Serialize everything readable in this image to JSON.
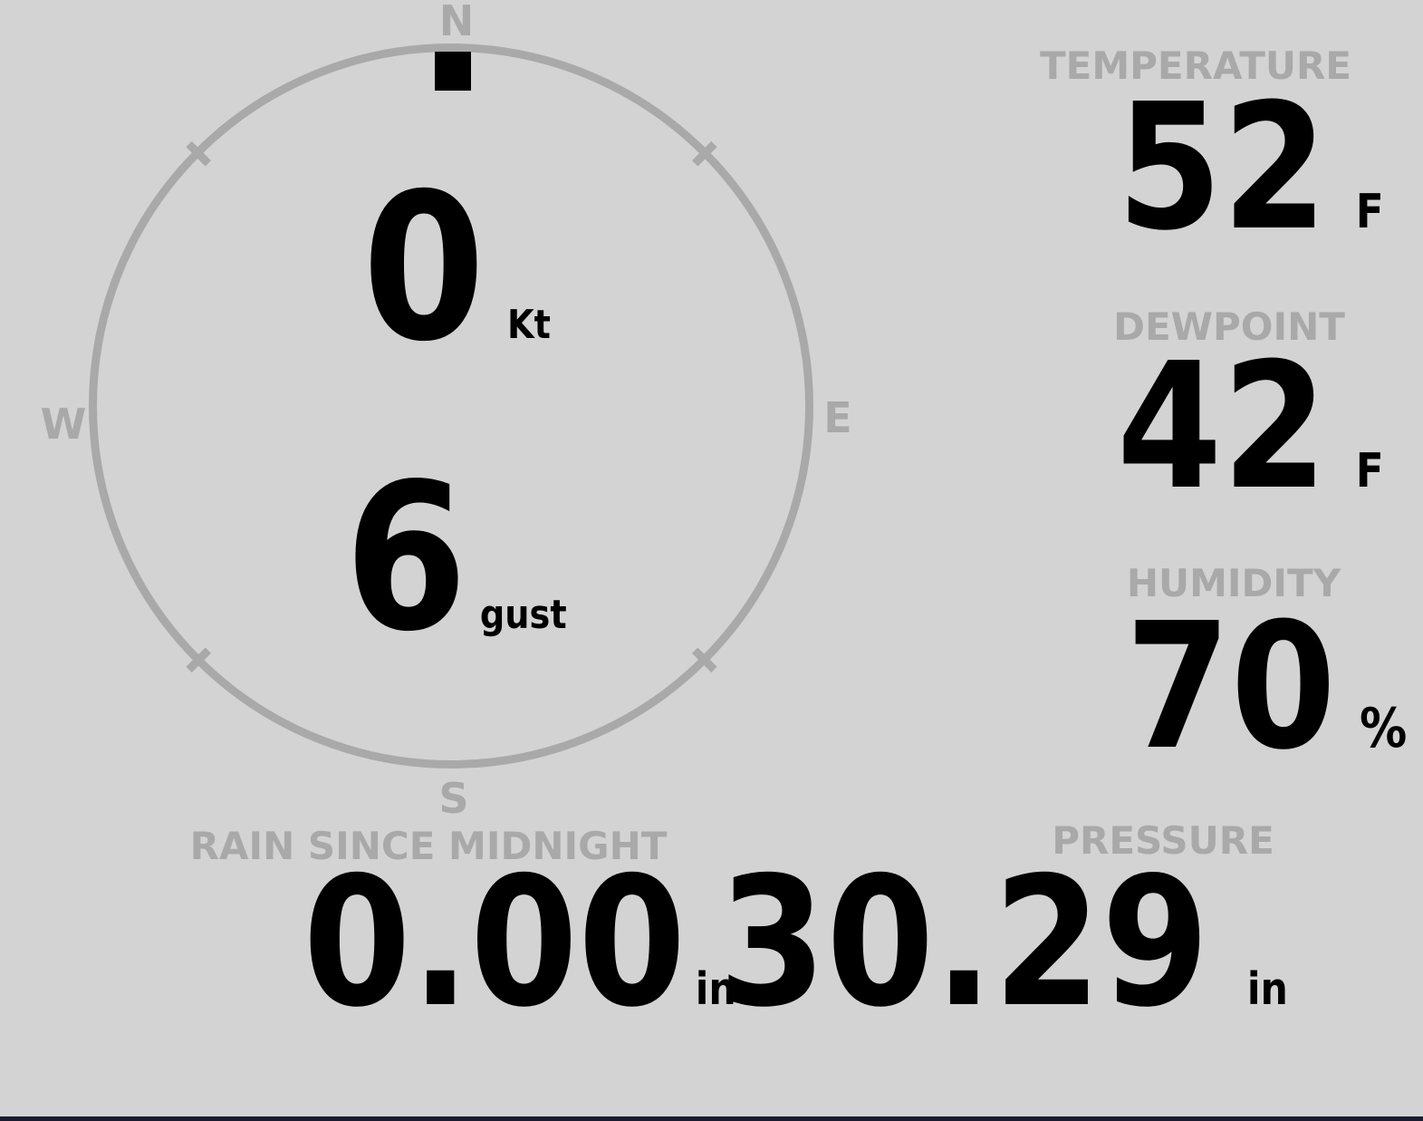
{
  "colors": {
    "background": "#d3d3d3",
    "dial_and_labels": "#a9a9a9",
    "values": "#000000",
    "bottom_bar": "#1a1b2e"
  },
  "compass": {
    "cardinals": {
      "north": "N",
      "east": "E",
      "south": "S",
      "west": "W"
    },
    "direction_cardinal": "N",
    "speed": {
      "value": "0",
      "unit": "Kt"
    },
    "gust": {
      "value": "6",
      "unit": "gust"
    }
  },
  "metrics": {
    "temperature": {
      "label": "TEMPERATURE",
      "value": "52",
      "unit": "F"
    },
    "dewpoint": {
      "label": "DEWPOINT",
      "value": "42",
      "unit": "F"
    },
    "humidity": {
      "label": "HUMIDITY",
      "value": "70",
      "unit": "%"
    },
    "pressure": {
      "label": "PRESSURE",
      "value": "30.29",
      "unit": "in"
    },
    "rain_since_midnight": {
      "label": "RAIN SINCE MIDNIGHT",
      "value": "0.00",
      "unit": "in"
    }
  }
}
